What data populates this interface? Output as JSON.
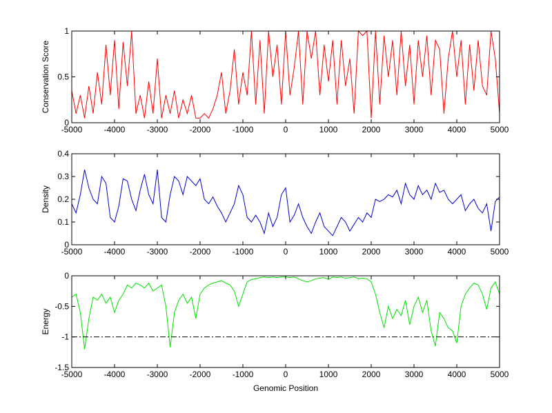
{
  "chart_data": [
    {
      "type": "line",
      "ylabel": "Conservation Score",
      "xlabel": "",
      "xlim": [
        -5000,
        5000
      ],
      "ylim": [
        0,
        1
      ],
      "xticks": [
        -5000,
        -4000,
        -3000,
        -2000,
        -1000,
        0,
        1000,
        2000,
        3000,
        4000,
        5000
      ],
      "xtick_labels": [
        "-5000",
        "-4000",
        "-3000",
        "-2000",
        "-1000",
        "0",
        "1000",
        "2000",
        "3000",
        "4000",
        "5000"
      ],
      "yticks": [
        0,
        0.5,
        1
      ],
      "ytick_labels": [
        "0",
        "0.5",
        "1"
      ],
      "color": "#ff0000",
      "series": [
        {
          "x": [
            -5000,
            -4900,
            -4800,
            -4700,
            -4600,
            -4500,
            -4400,
            -4300,
            -4200,
            -4100,
            -4000,
            -3900,
            -3800,
            -3700,
            -3600,
            -3500,
            -3400,
            -3300,
            -3200,
            -3100,
            -3000,
            -2900,
            -2800,
            -2700,
            -2600,
            -2500,
            -2400,
            -2300,
            -2200,
            -2100,
            -2000,
            -1900,
            -1800,
            -1700,
            -1600,
            -1500,
            -1400,
            -1300,
            -1200,
            -1100,
            -1000,
            -900,
            -800,
            -700,
            -600,
            -500,
            -400,
            -300,
            -200,
            -100,
            0,
            100,
            200,
            300,
            400,
            500,
            600,
            700,
            800,
            900,
            1000,
            1100,
            1200,
            1300,
            1400,
            1500,
            1600,
            1700,
            1800,
            1900,
            2000,
            2100,
            2200,
            2300,
            2400,
            2500,
            2600,
            2700,
            2800,
            2900,
            3000,
            3100,
            3200,
            3300,
            3400,
            3500,
            3600,
            3700,
            3800,
            3900,
            4000,
            4100,
            4200,
            4300,
            4400,
            4500,
            4600,
            4700,
            4800,
            4900,
            5000
          ],
          "values": [
            0.35,
            0.1,
            0.3,
            0.05,
            0.4,
            0.1,
            0.55,
            0.2,
            0.85,
            0.3,
            0.9,
            0.15,
            0.88,
            0.4,
            1.0,
            0.1,
            0.3,
            0.05,
            0.45,
            0.1,
            0.7,
            0.05,
            0.3,
            0.1,
            0.35,
            0.05,
            0.25,
            0.1,
            0.3,
            0.05,
            0.05,
            0.1,
            0.05,
            0.15,
            0.3,
            0.55,
            0.1,
            0.35,
            0.8,
            0.2,
            0.55,
            0.3,
            1.0,
            0.2,
            0.9,
            0.1,
            1.0,
            0.5,
            0.85,
            0.2,
            1.0,
            0.3,
            0.6,
            1.0,
            0.2,
            1.0,
            0.7,
            1.0,
            0.3,
            0.85,
            0.45,
            0.9,
            0.2,
            0.9,
            0.4,
            0.7,
            0.1,
            1.0,
            0.95,
            1.0,
            0.05,
            1.0,
            0.2,
            0.95,
            0.5,
            0.9,
            0.3,
            1.0,
            0.4,
            0.85,
            0.2,
            0.9,
            0.5,
            0.95,
            0.3,
            0.9,
            0.8,
            0.1,
            0.7,
            1.0,
            0.5,
            0.9,
            0.2,
            0.85,
            0.35,
            0.9,
            0.4,
            0.3,
            1.0,
            0.7,
            0.1
          ]
        }
      ]
    },
    {
      "type": "line",
      "ylabel": "Density",
      "xlabel": "",
      "xlim": [
        -5000,
        5000
      ],
      "ylim": [
        0,
        0.4
      ],
      "xticks": [
        -5000,
        -4000,
        -3000,
        -2000,
        -1000,
        0,
        1000,
        2000,
        3000,
        4000,
        5000
      ],
      "xtick_labels": [
        "-5000",
        "-4000",
        "-3000",
        "-2000",
        "-1000",
        "0",
        "1000",
        "2000",
        "3000",
        "4000",
        "5000"
      ],
      "yticks": [
        0,
        0.1,
        0.2,
        0.3,
        0.4
      ],
      "ytick_labels": [
        "0",
        "0.1",
        "0.2",
        "0.3",
        "0.4"
      ],
      "color": "#0000cc",
      "series": [
        {
          "x": [
            -5000,
            -4900,
            -4800,
            -4700,
            -4600,
            -4500,
            -4400,
            -4300,
            -4200,
            -4100,
            -4000,
            -3900,
            -3800,
            -3700,
            -3600,
            -3500,
            -3400,
            -3300,
            -3200,
            -3100,
            -3000,
            -2900,
            -2800,
            -2700,
            -2600,
            -2500,
            -2400,
            -2300,
            -2200,
            -2100,
            -2000,
            -1900,
            -1800,
            -1700,
            -1600,
            -1500,
            -1400,
            -1300,
            -1200,
            -1100,
            -1000,
            -900,
            -800,
            -700,
            -600,
            -500,
            -400,
            -300,
            -200,
            -100,
            0,
            100,
            200,
            300,
            400,
            500,
            600,
            700,
            800,
            900,
            1000,
            1100,
            1200,
            1300,
            1400,
            1500,
            1600,
            1700,
            1800,
            1900,
            2000,
            2100,
            2200,
            2300,
            2400,
            2500,
            2600,
            2700,
            2800,
            2900,
            3000,
            3100,
            3200,
            3300,
            3400,
            3500,
            3600,
            3700,
            3800,
            3900,
            4000,
            4100,
            4200,
            4300,
            4400,
            4500,
            4600,
            4700,
            4800,
            4900,
            5000
          ],
          "values": [
            0.18,
            0.14,
            0.22,
            0.33,
            0.25,
            0.2,
            0.18,
            0.3,
            0.27,
            0.12,
            0.1,
            0.17,
            0.29,
            0.28,
            0.2,
            0.15,
            0.24,
            0.31,
            0.22,
            0.18,
            0.33,
            0.12,
            0.1,
            0.22,
            0.3,
            0.28,
            0.22,
            0.3,
            0.28,
            0.26,
            0.29,
            0.2,
            0.18,
            0.21,
            0.17,
            0.14,
            0.1,
            0.14,
            0.18,
            0.26,
            0.22,
            0.12,
            0.1,
            0.13,
            0.1,
            0.05,
            0.14,
            0.08,
            0.12,
            0.22,
            0.25,
            0.1,
            0.13,
            0.18,
            0.12,
            0.08,
            0.05,
            0.1,
            0.14,
            0.08,
            0.06,
            0.04,
            0.08,
            0.12,
            0.1,
            0.06,
            0.09,
            0.12,
            0.1,
            0.14,
            0.12,
            0.2,
            0.19,
            0.2,
            0.22,
            0.21,
            0.24,
            0.18,
            0.27,
            0.22,
            0.2,
            0.26,
            0.22,
            0.24,
            0.2,
            0.27,
            0.23,
            0.24,
            0.2,
            0.18,
            0.2,
            0.22,
            0.15,
            0.18,
            0.2,
            0.16,
            0.14,
            0.18,
            0.06,
            0.19,
            0.21
          ]
        }
      ]
    },
    {
      "type": "line",
      "ylabel": "Energy",
      "xlabel": "Genomic Position",
      "xlim": [
        -5000,
        5000
      ],
      "ylim": [
        -1.5,
        0
      ],
      "xticks": [
        -5000,
        -4000,
        -3000,
        -2000,
        -1000,
        0,
        1000,
        2000,
        3000,
        4000,
        5000
      ],
      "xtick_labels": [
        "-5000",
        "-4000",
        "-3000",
        "-2000",
        "-1000",
        "0",
        "1000",
        "2000",
        "3000",
        "4000",
        "5000"
      ],
      "yticks": [
        -1.5,
        -1,
        -0.5,
        0
      ],
      "ytick_labels": [
        "-1.5",
        "-1",
        "-0.5",
        "0"
      ],
      "color": "#00e000",
      "threshold": {
        "y": -1,
        "style": "dash-dot",
        "color": "#000000"
      },
      "series": [
        {
          "x": [
            -5000,
            -4900,
            -4800,
            -4700,
            -4600,
            -4500,
            -4400,
            -4300,
            -4200,
            -4100,
            -4000,
            -3900,
            -3800,
            -3700,
            -3600,
            -3500,
            -3400,
            -3300,
            -3200,
            -3100,
            -3000,
            -2900,
            -2800,
            -2700,
            -2600,
            -2500,
            -2400,
            -2300,
            -2200,
            -2100,
            -2000,
            -1900,
            -1800,
            -1700,
            -1600,
            -1500,
            -1400,
            -1300,
            -1200,
            -1100,
            -1000,
            -900,
            -800,
            -700,
            -600,
            -500,
            -400,
            -300,
            -200,
            -100,
            0,
            100,
            200,
            300,
            400,
            500,
            600,
            700,
            800,
            900,
            1000,
            1100,
            1200,
            1300,
            1400,
            1500,
            1600,
            1700,
            1800,
            1900,
            2000,
            2100,
            2200,
            2300,
            2400,
            2500,
            2600,
            2700,
            2800,
            2900,
            3000,
            3100,
            3200,
            3300,
            3400,
            3500,
            3600,
            3700,
            3800,
            3900,
            4000,
            4100,
            4200,
            4300,
            4400,
            4500,
            4600,
            4700,
            4800,
            4900,
            5000
          ],
          "values": [
            -0.35,
            -0.3,
            -0.6,
            -1.2,
            -0.7,
            -0.35,
            -0.4,
            -0.3,
            -0.45,
            -0.35,
            -0.6,
            -0.4,
            -0.3,
            -0.15,
            -0.2,
            -0.12,
            -0.15,
            -0.2,
            -0.12,
            -0.25,
            -0.2,
            -0.15,
            -0.5,
            -1.17,
            -0.6,
            -0.4,
            -0.3,
            -0.45,
            -0.35,
            -0.7,
            -0.3,
            -0.2,
            -0.15,
            -0.12,
            -0.1,
            -0.08,
            -0.12,
            -0.15,
            -0.25,
            -0.5,
            -0.3,
            -0.1,
            -0.06,
            -0.05,
            -0.03,
            -0.02,
            -0.03,
            -0.02,
            -0.03,
            -0.02,
            -0.02,
            -0.03,
            -0.02,
            -0.05,
            -0.08,
            -0.1,
            -0.08,
            -0.05,
            -0.04,
            -0.03,
            -0.06,
            -0.02,
            -0.03,
            -0.02,
            -0.04,
            -0.03,
            -0.02,
            -0.05,
            -0.04,
            -0.05,
            -0.1,
            -0.3,
            -0.6,
            -0.85,
            -0.5,
            -0.7,
            -0.55,
            -0.65,
            -0.4,
            -0.8,
            -0.5,
            -0.35,
            -0.6,
            -0.4,
            -0.9,
            -1.15,
            -0.6,
            -0.7,
            -0.85,
            -0.9,
            -1.1,
            -0.5,
            -0.3,
            -0.2,
            -0.12,
            -0.15,
            -0.3,
            -0.55,
            -0.2,
            -0.1,
            -0.3
          ]
        }
      ]
    }
  ]
}
